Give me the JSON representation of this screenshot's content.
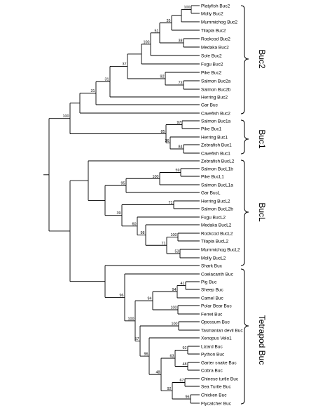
{
  "tree": {
    "taxa": [
      "Platyfish Buc2",
      "Molly Buc2",
      "Mummichog Buc2",
      "Tilapia Buc2",
      "Rockcod Buc2",
      "Medaka Buc2",
      "Sole Buc2",
      "Fugu Buc2",
      "Pike Buc2",
      "Salmon Buc2a",
      "Salmon Buc2b",
      "Herring Buc2",
      "Gar Buc",
      "Cavefish Buc2",
      "Salmon Buc1a",
      "Pike Buc1",
      "Herring Buc1",
      "Zebrafish Buc1",
      "Cavefish Buc1",
      "Zebrafish BucL2",
      "Salmon BucL1b",
      "Pike BucL1",
      "Salmon BucL1a",
      "Gar BucL",
      "Herring BucL2",
      "Salmon BucL2b",
      "Fugu BucL2",
      "Medaka BucL2",
      "Rockcod BucL2",
      "Tilapia BucL2",
      "Mummichog BucL2",
      "Molly BucL2",
      "Shark Buc",
      "Coelacanth Buc",
      "Pig Buc",
      "Sheep Buc",
      "Camel Buc",
      "Polar Bear Buc",
      "Ferret Buc",
      "Opossum Buc",
      "Tasmanian devil Buc",
      "Xenopus Velo1",
      "Lizard Buc",
      "Python Buc",
      "Garter snake Buc",
      "Cobra Buc",
      "Chinese turtle Buc",
      "Sea Turtle Buc",
      "Chicken Buc",
      "Flycatcher Buc"
    ],
    "bootstrap": {
      "n100a": "100",
      "n35": "35",
      "n38": "38",
      "n51": "51",
      "n100b": "100",
      "n92a": "92",
      "n73": "73",
      "n37": "37",
      "n31a": "31",
      "n31b": "31",
      "n100c": "100",
      "n97": "97",
      "n36": "36",
      "n84": "84",
      "n85": "85",
      "n59": "59",
      "n100d": "100",
      "n95": "95",
      "n71a": "71",
      "n39": "39",
      "n53": "53",
      "n100e": "100",
      "n71b": "71",
      "n98": "98",
      "n60": "60",
      "n96a": "96",
      "n41": "41",
      "n94a": "94",
      "n100f": "100",
      "n94b": "94",
      "n100g": "100",
      "n57": "57",
      "n92b": "92",
      "n63": "63",
      "n48a": "48",
      "n67": "67",
      "n96b": "96",
      "n92c": "92",
      "n100h": "100",
      "n48b": "48",
      "n96c": "96"
    }
  },
  "clades": {
    "buc2": "Buc2",
    "buc1": "Buc1",
    "bucl": "BucL",
    "tetrapod": "Tetrapod Buc"
  }
}
